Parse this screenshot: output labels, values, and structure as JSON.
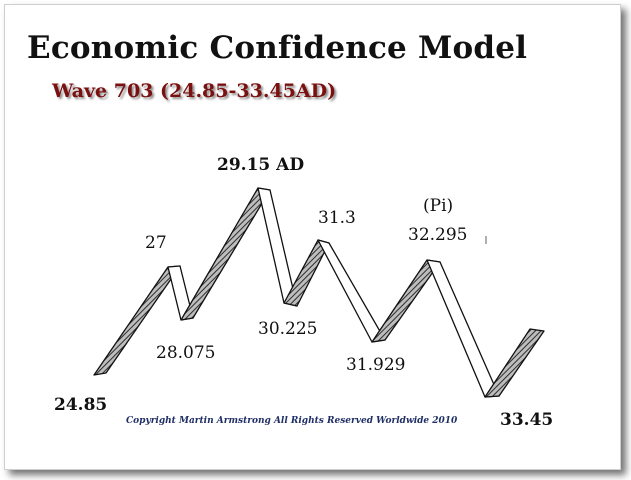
{
  "title": "Economic Confidence Model",
  "subtitle": "Wave 703 (24.85-33.45AD)",
  "copyright": "Copyright Martin Armstrong All Rights Reserved Worldwide 2010",
  "colors": {
    "subtitle": "#7a1010",
    "copyright": "#1f2f66",
    "hatch": "#333333"
  },
  "turning_points": [
    {
      "id": "p1",
      "label": "24.85"
    },
    {
      "id": "p2",
      "label": "27"
    },
    {
      "id": "p3",
      "label": "28.075"
    },
    {
      "id": "p4",
      "label": "29.15 AD"
    },
    {
      "id": "p5",
      "label": "30.225"
    },
    {
      "id": "p6",
      "label": "31.3"
    },
    {
      "id": "p7",
      "label": "31.929"
    },
    {
      "id": "p8",
      "label": "32.295"
    },
    {
      "id": "p9",
      "label": "33.45"
    }
  ],
  "pi_label": "(Pi)"
}
